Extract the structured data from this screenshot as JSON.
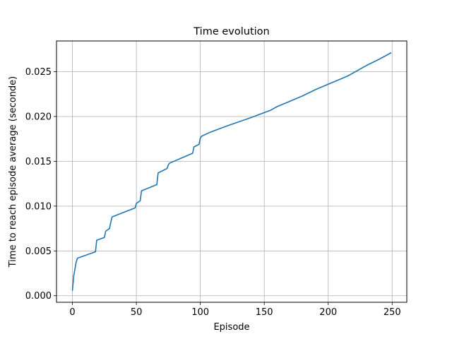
{
  "chart_data": {
    "type": "line",
    "title": "Time evolution",
    "xlabel": "Episode",
    "ylabel": "Time to reach episode average (seconde)",
    "xlim": [
      -12.45,
      261.45
    ],
    "ylim": [
      -0.00073,
      0.02843
    ],
    "xticks": [
      0,
      50,
      100,
      150,
      200,
      250
    ],
    "xtick_labels": [
      "0",
      "50",
      "100",
      "150",
      "200",
      "250"
    ],
    "yticks": [
      0.0,
      0.005,
      0.01,
      0.015,
      0.02,
      0.025
    ],
    "ytick_labels": [
      "0.000",
      "0.005",
      "0.010",
      "0.015",
      "0.020",
      "0.025"
    ],
    "grid": true,
    "series": [
      {
        "color": "#1f77b4",
        "x": [
          0,
          1,
          2,
          3,
          4,
          18,
          19,
          25,
          26,
          29,
          30,
          31,
          49,
          50,
          53,
          54,
          66,
          67,
          74,
          75,
          76,
          94,
          95,
          99,
          100,
          101,
          107,
          120,
          140,
          155,
          160,
          170,
          180,
          190,
          200,
          210,
          215,
          220,
          225,
          230,
          240,
          249
        ],
        "y": [
          0.0006,
          0.0022,
          0.003,
          0.0038,
          0.0042,
          0.0049,
          0.0062,
          0.0065,
          0.0072,
          0.0075,
          0.0082,
          0.0088,
          0.0098,
          0.0103,
          0.0106,
          0.0117,
          0.0124,
          0.0137,
          0.0142,
          0.0146,
          0.0148,
          0.0159,
          0.0166,
          0.0169,
          0.0176,
          0.0178,
          0.0182,
          0.0189,
          0.0199,
          0.0207,
          0.0211,
          0.0217,
          0.0223,
          0.023,
          0.0236,
          0.0242,
          0.0245,
          0.0249,
          0.0253,
          0.0257,
          0.0264,
          0.0271
        ]
      }
    ]
  }
}
